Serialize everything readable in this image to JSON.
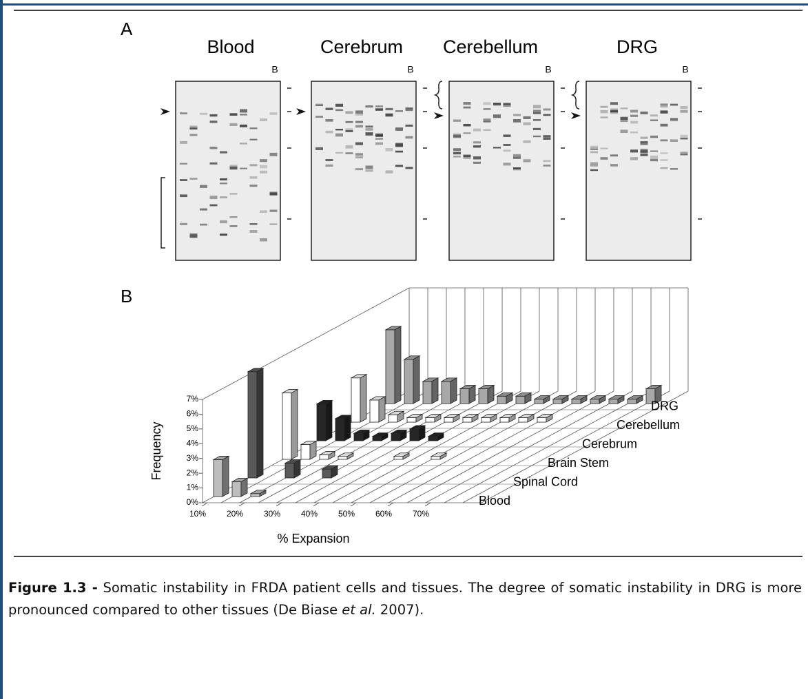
{
  "panel_a": {
    "label": "A",
    "gels": [
      {
        "title": "Blood",
        "lane_label": "B"
      },
      {
        "title": "Cerebrum",
        "lane_label": "B"
      },
      {
        "title": "Cerebellum",
        "lane_label": "B"
      },
      {
        "title": "DRG",
        "lane_label": "B"
      }
    ]
  },
  "chart_data": {
    "type": "bar3d",
    "panel_label": "B",
    "xlabel": "% Expansion",
    "ylabel": "Frequency",
    "x": [
      10,
      15,
      20,
      25,
      30,
      35,
      40,
      45,
      50,
      55,
      60,
      65,
      70,
      75,
      80
    ],
    "xticks": [
      {
        "value": 10,
        "label": "10%"
      },
      {
        "value": 20,
        "label": "20%"
      },
      {
        "value": 30,
        "label": "30%"
      },
      {
        "value": 40,
        "label": "40%"
      },
      {
        "value": 50,
        "label": "50%"
      },
      {
        "value": 60,
        "label": "60%"
      },
      {
        "value": 70,
        "label": "70%"
      }
    ],
    "ylim": [
      0,
      7
    ],
    "yticks": [
      {
        "value": 0,
        "label": "0%"
      },
      {
        "value": 1,
        "label": "1%"
      },
      {
        "value": 2,
        "label": "2%"
      },
      {
        "value": 3,
        "label": "3%"
      },
      {
        "value": 4,
        "label": "4%"
      },
      {
        "value": 5,
        "label": "5%"
      },
      {
        "value": 6,
        "label": "6%"
      },
      {
        "value": 7,
        "label": "7%"
      }
    ],
    "series": [
      {
        "name": "Blood",
        "color": "#bdbdbd",
        "values": [
          2.5,
          1.0,
          0.2,
          null,
          null,
          null,
          null,
          null,
          null,
          null,
          null,
          null,
          null,
          null,
          null
        ]
      },
      {
        "name": "Spinal Cord",
        "color": "#5a5a5a",
        "values": [
          7.2,
          null,
          1.0,
          null,
          0.6,
          null,
          null,
          null,
          null,
          null,
          null,
          null,
          null,
          null,
          null
        ]
      },
      {
        "name": "Brain Stem",
        "color": "#ffffff",
        "values": [
          4.5,
          1.0,
          0.3,
          0.2,
          null,
          null,
          0.2,
          null,
          0.2,
          null,
          null,
          null,
          null,
          null,
          null
        ]
      },
      {
        "name": "Cerebrum",
        "color": "#262626",
        "values": [
          2.5,
          1.5,
          0.5,
          0.3,
          0.5,
          0.8,
          0.3,
          null,
          null,
          null,
          null,
          null,
          null,
          null,
          null
        ]
      },
      {
        "name": "Cerebellum",
        "color": "#ffffff",
        "values": [
          3.0,
          1.5,
          0.5,
          0.3,
          0.3,
          0.3,
          0.3,
          0.3,
          0.3,
          0.3,
          0.3,
          null,
          null,
          null,
          null
        ]
      },
      {
        "name": "DRG",
        "color": "#a8a8a8",
        "values": [
          5.0,
          3.0,
          1.5,
          1.5,
          1.0,
          1.0,
          0.5,
          0.5,
          0.3,
          0.3,
          0.3,
          0.3,
          0.3,
          0.3,
          1.0
        ]
      }
    ]
  },
  "caption": {
    "label": "Figure 1.3 -",
    "text_1": " Somatic instability in FRDA patient cells and tissues. The degree of somatic instability in DRG is more pronounced compared to other tissues (De Biase ",
    "italic": "et al.",
    "text_2": " 2007)."
  }
}
